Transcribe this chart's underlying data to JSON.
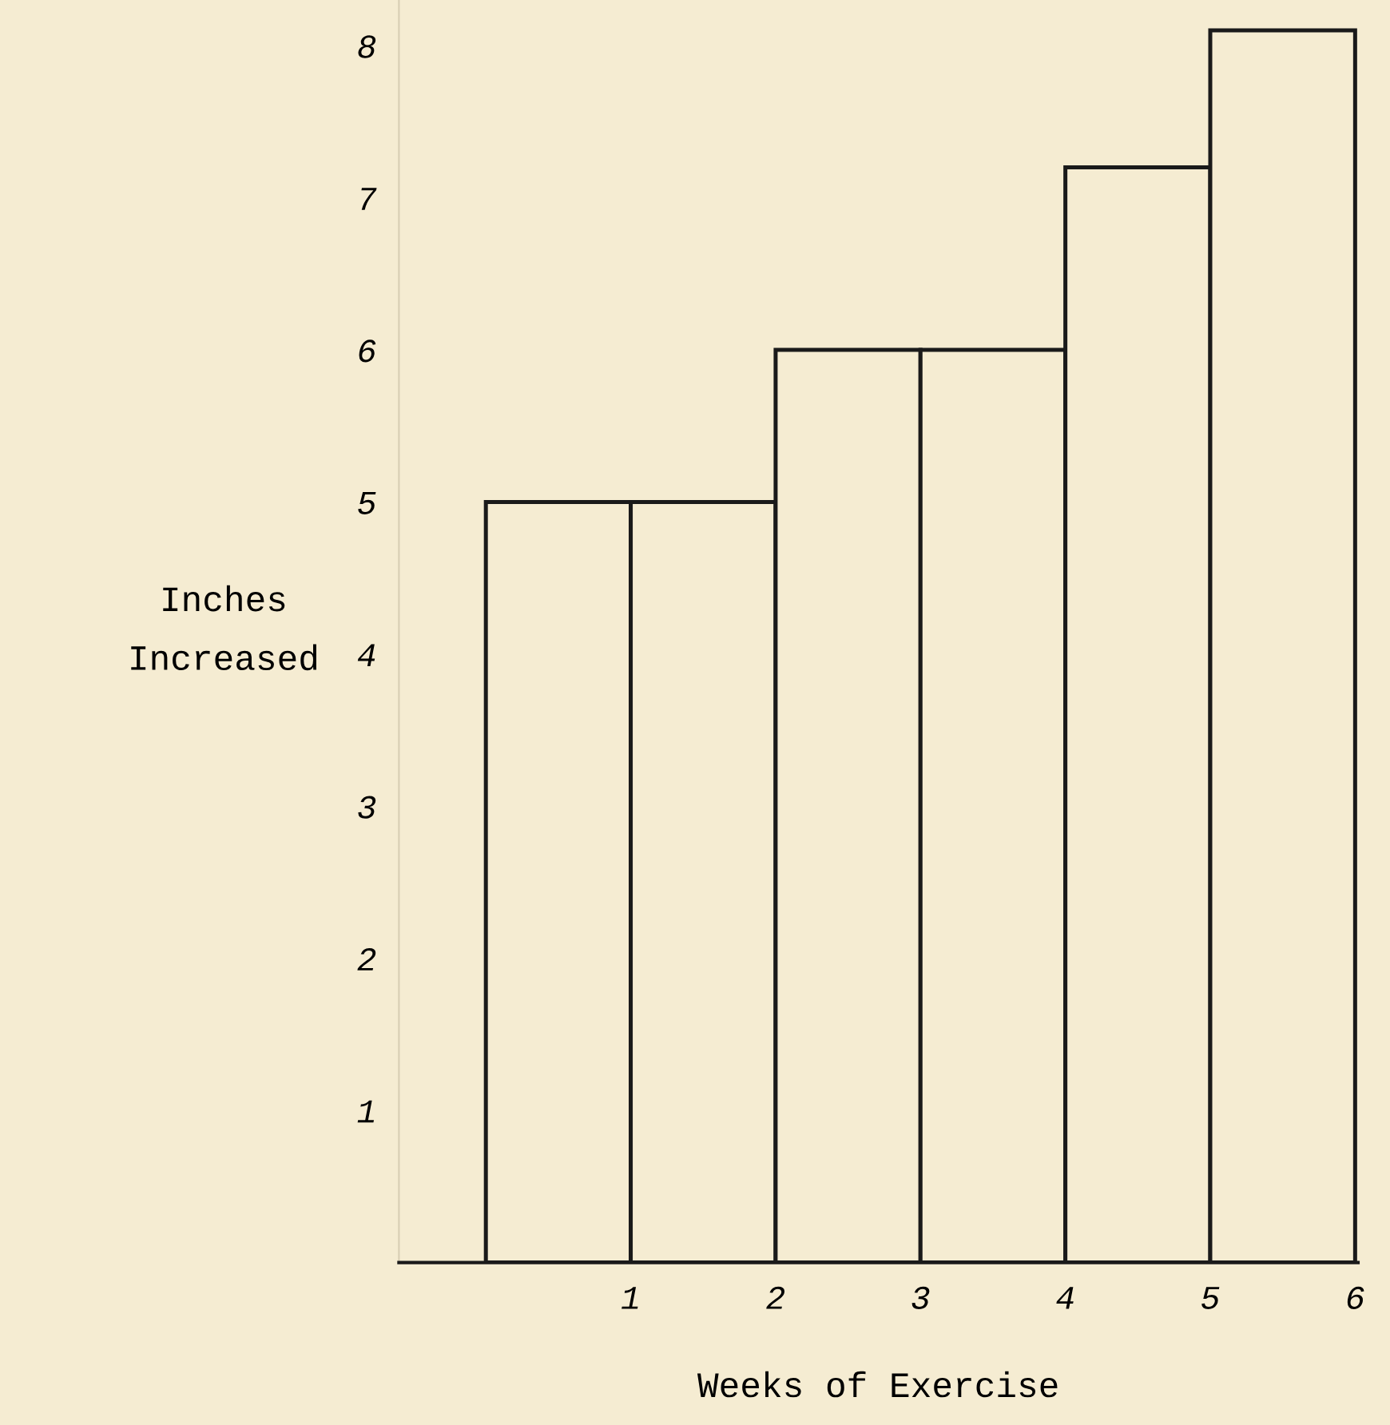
{
  "chart_data": {
    "type": "histogram",
    "xlabel": "Weeks of Exercise",
    "ylabel": "Inches\nIncreased",
    "bins": [
      0,
      1,
      2,
      3,
      4,
      5,
      6
    ],
    "values": [
      5,
      5,
      6,
      6,
      7.2,
      8.1
    ],
    "color": "#f5ecd2",
    "xlim": [
      -0.6,
      6.02
    ],
    "xticks": [
      1,
      2,
      3,
      4,
      5,
      6
    ],
    "ylim": [
      0,
      8.3
    ],
    "yticks": [
      1,
      2,
      3,
      4,
      5,
      6,
      7,
      8
    ],
    "grid": false
  }
}
